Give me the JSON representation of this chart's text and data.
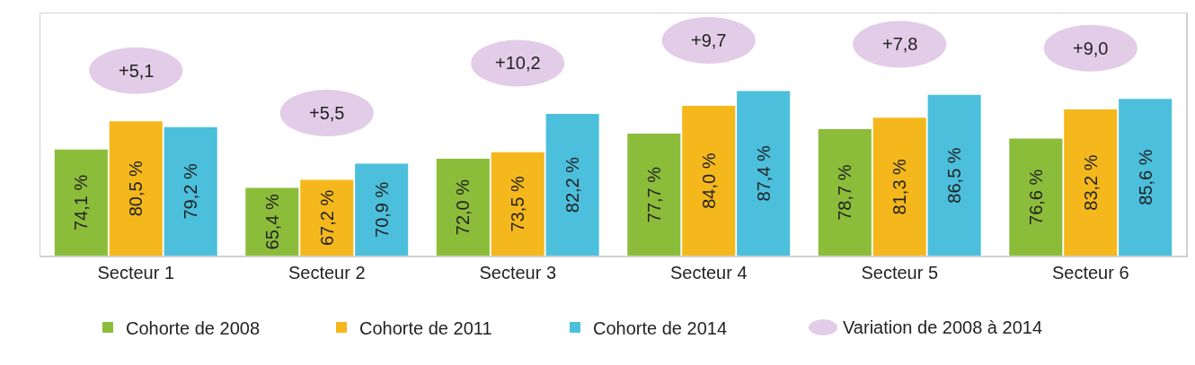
{
  "chart_data": {
    "type": "bar",
    "categories": [
      "Secteur 1",
      "Secteur 2",
      "Secteur 3",
      "Secteur 4",
      "Secteur 5",
      "Secteur 6"
    ],
    "ylim": [
      50,
      105
    ],
    "tick_labels": "x",
    "grid": false,
    "legend": "bottom",
    "series": [
      {
        "name": "Cohorte de 2008",
        "color": "#8cbd3a",
        "values": [
          74.1,
          65.4,
          72.0,
          77.7,
          78.7,
          76.6
        ],
        "value_labels": [
          "74,1 %",
          "65,4 %",
          "72,0 %",
          "77,7 %",
          "78,7 %",
          "76,6 %"
        ]
      },
      {
        "name": "Cohorte de 2011",
        "color": "#f5b81c",
        "values": [
          80.5,
          67.2,
          73.5,
          84.0,
          81.3,
          83.2
        ],
        "value_labels": [
          "80,5 %",
          "67,2 %",
          "73,5 %",
          "84,0 %",
          "81,3 %",
          "83,2 %"
        ]
      },
      {
        "name": "Cohorte de 2014",
        "color": "#4cbfdc",
        "values": [
          79.2,
          70.9,
          82.2,
          87.4,
          86.5,
          85.6
        ],
        "value_labels": [
          "79,2 %",
          "70,9 %",
          "82,2 %",
          "87,4 %",
          "86,5 %",
          "85,6 %"
        ]
      }
    ],
    "annotations": [
      "+5,1",
      "+5,5",
      "+10,2",
      "+9,7",
      "+7,8",
      "+9,0",
      "Variation de 2008 à 2014"
    ]
  }
}
